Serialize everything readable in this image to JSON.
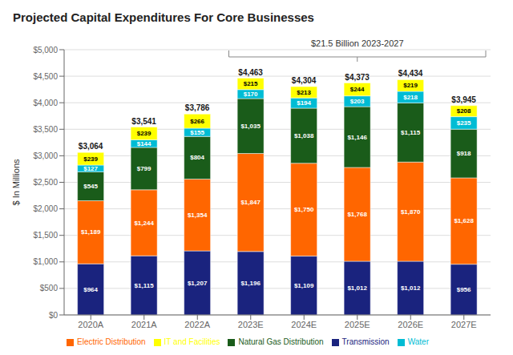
{
  "chart_data": {
    "type": "bar",
    "title": "Projected Capital Expenditures For Core Businesses",
    "ylabel": "$ In Millions",
    "stacked": true,
    "grid": true,
    "legend": "bottom",
    "data_labels": true,
    "categories": [
      "2020A",
      "2021A",
      "2022A",
      "2023E",
      "2024E",
      "2025E",
      "2026E",
      "2027E"
    ],
    "series": [
      {
        "name": "Transmission",
        "color": "#1a237e",
        "values": [
          964,
          1115,
          1207,
          1196,
          1109,
          1012,
          1012,
          956
        ],
        "value_labels": [
          "$964",
          "$1,115",
          "$1,207",
          "$1,196",
          "$1,109",
          "$1,012",
          "$1,012",
          "$956"
        ]
      },
      {
        "name": "Electric Distribution",
        "color": "#ff6600",
        "values": [
          1189,
          1244,
          1354,
          1847,
          1750,
          1768,
          1870,
          1628
        ],
        "value_labels": [
          "$1,189",
          "$1,244",
          "$1,354",
          "$1,847",
          "$1,750",
          "$1,768",
          "$1,870",
          "$1,628"
        ]
      },
      {
        "name": "Natural Gas Distribution",
        "color": "#1a5c1a",
        "values": [
          545,
          799,
          804,
          1035,
          1038,
          1146,
          1115,
          918
        ],
        "value_labels": [
          "$545",
          "$799",
          "$804",
          "$1,035",
          "$1,038",
          "$1,146",
          "$1,115",
          "$918"
        ]
      },
      {
        "name": "Water",
        "color": "#00bcd4",
        "values": [
          127,
          144,
          155,
          170,
          194,
          203,
          218,
          235
        ],
        "value_labels": [
          "$127",
          "$144",
          "$155",
          "$170",
          "$194",
          "$203",
          "$218",
          "$235"
        ]
      },
      {
        "name": "IT and Facilities",
        "color": "#ffff00",
        "values": [
          239,
          239,
          266,
          215,
          213,
          244,
          219,
          208
        ],
        "value_labels": [
          "$239",
          "$239",
          "$266",
          "$215",
          "$213",
          "$244",
          "$219",
          "$208"
        ]
      }
    ],
    "totals": [
      3064,
      3541,
      3786,
      4463,
      4304,
      4373,
      4434,
      3945
    ],
    "total_labels": [
      "$3,064",
      "$3,541",
      "$3,786",
      "$4,463",
      "$4,304",
      "$4,373",
      "$4,434",
      "$3,945"
    ],
    "annotations": [
      {
        "text": "$21.5 Billion 2023-2027",
        "from": "2023E",
        "to": "2027E"
      }
    ],
    "ylim": [
      0,
      5000
    ],
    "yticks": [
      {
        "value": 0,
        "label": "$0"
      },
      {
        "value": 500,
        "label": "$500"
      },
      {
        "value": 1000,
        "label": "$1,000"
      },
      {
        "value": 1500,
        "label": "$1,500"
      },
      {
        "value": 2000,
        "label": "$2,000"
      },
      {
        "value": 2500,
        "label": "$2,500"
      },
      {
        "value": 3000,
        "label": "$3,000"
      },
      {
        "value": 3500,
        "label": "$3,500"
      },
      {
        "value": 4000,
        "label": "$4,000"
      },
      {
        "value": 4500,
        "label": "$4,500"
      },
      {
        "value": 5000,
        "label": "$5,000"
      }
    ]
  }
}
